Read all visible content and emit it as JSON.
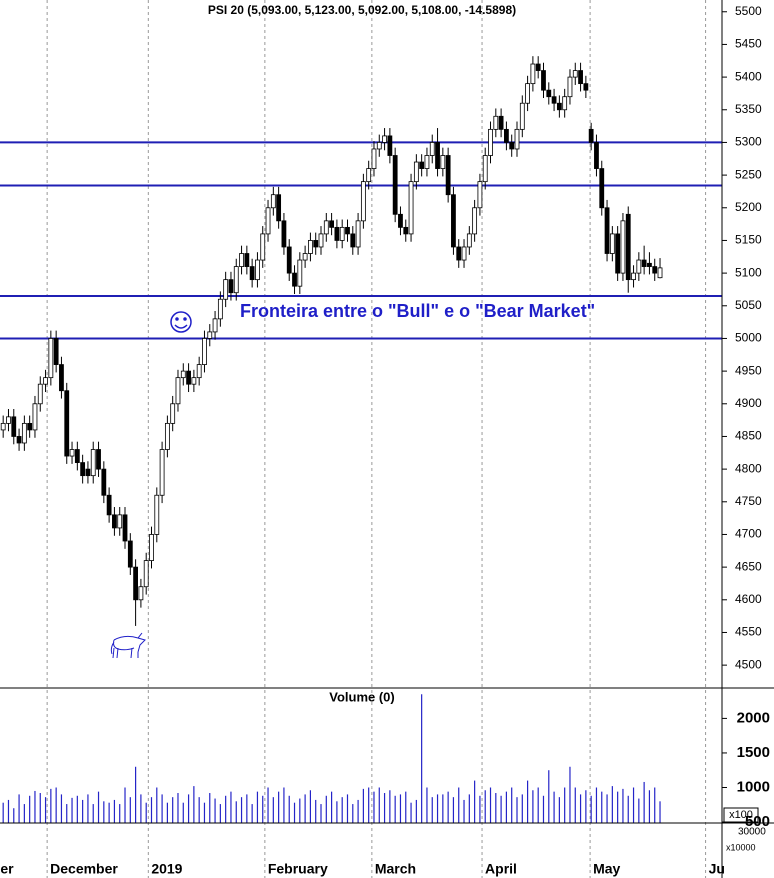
{
  "chart_data": {
    "type": "candlestick",
    "title": "PSI 20 (5,093.00, 5,123.00, 5,092.00, 5,108.00, -14.5898)",
    "annotation": "Fronteira entre o \"Bull\" e o \"Bear Market\"",
    "ylim": [
      4465,
      5518
    ],
    "yticks": [
      4500,
      4550,
      4600,
      4650,
      4700,
      4750,
      4800,
      4850,
      4900,
      4950,
      5000,
      5050,
      5100,
      5150,
      5200,
      5250,
      5300,
      5350,
      5400,
      5450,
      5500
    ],
    "hlines": [
      5300,
      5234,
      5065,
      5000
    ],
    "hline_color": "#1f1fb4",
    "xlim": [
      -0.6,
      135.7
    ],
    "xticks": [
      {
        "value": -1.1,
        "label": "er"
      },
      {
        "value": 8.3,
        "label": "December"
      },
      {
        "value": 27.4,
        "label": "2019"
      },
      {
        "value": 49.4,
        "label": "February"
      },
      {
        "value": 69.6,
        "label": "March"
      },
      {
        "value": 90.4,
        "label": "April"
      },
      {
        "value": 110.8,
        "label": "May"
      },
      {
        "value": 132.6,
        "label": "Ju"
      }
    ],
    "up_color": "#ffffff",
    "down_color": "#000000",
    "candles": [
      [
        4860,
        4882,
        4848,
        4870
      ],
      [
        4870,
        4892,
        4858,
        4880
      ],
      [
        4880,
        4892,
        4838,
        4850
      ],
      [
        4850,
        4862,
        4828,
        4840
      ],
      [
        4840,
        4882,
        4828,
        4870
      ],
      [
        4870,
        4882,
        4848,
        4860
      ],
      [
        4860,
        4912,
        4848,
        4900
      ],
      [
        4900,
        4942,
        4888,
        4930
      ],
      [
        4930,
        4952,
        4918,
        4940
      ],
      [
        4940,
        5012,
        4928,
        5000
      ],
      [
        5000,
        5012,
        4948,
        4960
      ],
      [
        4960,
        4972,
        4908,
        4920
      ],
      [
        4920,
        4932,
        4808,
        4820
      ],
      [
        4820,
        4842,
        4808,
        4830
      ],
      [
        4830,
        4842,
        4798,
        4810
      ],
      [
        4810,
        4822,
        4778,
        4790
      ],
      [
        4800,
        4812,
        4778,
        4790
      ],
      [
        4790,
        4842,
        4778,
        4830
      ],
      [
        4830,
        4842,
        4788,
        4800
      ],
      [
        4800,
        4812,
        4748,
        4760
      ],
      [
        4760,
        4772,
        4718,
        4730
      ],
      [
        4730,
        4742,
        4698,
        4710
      ],
      [
        4710,
        4742,
        4698,
        4730
      ],
      [
        4730,
        4742,
        4678,
        4690
      ],
      [
        4690,
        4702,
        4638,
        4650
      ],
      [
        4650,
        4662,
        4560,
        4600
      ],
      [
        4600,
        4632,
        4588,
        4620
      ],
      [
        4620,
        4672,
        4608,
        4660
      ],
      [
        4660,
        4712,
        4648,
        4700
      ],
      [
        4700,
        4772,
        4688,
        4760
      ],
      [
        4760,
        4842,
        4748,
        4830
      ],
      [
        4830,
        4882,
        4818,
        4870
      ],
      [
        4870,
        4912,
        4858,
        4900
      ],
      [
        4900,
        4952,
        4888,
        4940
      ],
      [
        4940,
        4962,
        4928,
        4950
      ],
      [
        4950,
        4962,
        4918,
        4930
      ],
      [
        4930,
        4952,
        4918,
        4940
      ],
      [
        4940,
        4972,
        4928,
        4960
      ],
      [
        4960,
        5012,
        4948,
        5000
      ],
      [
        5000,
        5022,
        4988,
        5010
      ],
      [
        5010,
        5042,
        4998,
        5030
      ],
      [
        5030,
        5072,
        5018,
        5060
      ],
      [
        5060,
        5102,
        5048,
        5090
      ],
      [
        5090,
        5102,
        5058,
        5070
      ],
      [
        5070,
        5122,
        5058,
        5110
      ],
      [
        5110,
        5142,
        5098,
        5130
      ],
      [
        5130,
        5142,
        5098,
        5110
      ],
      [
        5110,
        5122,
        5078,
        5090
      ],
      [
        5090,
        5132,
        5078,
        5120
      ],
      [
        5120,
        5172,
        5108,
        5160
      ],
      [
        5160,
        5212,
        5148,
        5200
      ],
      [
        5200,
        5232,
        5188,
        5220
      ],
      [
        5220,
        5232,
        5168,
        5180
      ],
      [
        5180,
        5192,
        5128,
        5140
      ],
      [
        5140,
        5152,
        5088,
        5100
      ],
      [
        5100,
        5112,
        5068,
        5080
      ],
      [
        5080,
        5132,
        5068,
        5120
      ],
      [
        5120,
        5142,
        5108,
        5130
      ],
      [
        5130,
        5162,
        5118,
        5150
      ],
      [
        5150,
        5162,
        5128,
        5140
      ],
      [
        5140,
        5172,
        5128,
        5160
      ],
      [
        5160,
        5192,
        5148,
        5180
      ],
      [
        5180,
        5192,
        5158,
        5170
      ],
      [
        5170,
        5182,
        5138,
        5150
      ],
      [
        5150,
        5182,
        5138,
        5170
      ],
      [
        5170,
        5182,
        5148,
        5160
      ],
      [
        5160,
        5172,
        5128,
        5140
      ],
      [
        5140,
        5192,
        5128,
        5180
      ],
      [
        5180,
        5252,
        5168,
        5240
      ],
      [
        5240,
        5272,
        5228,
        5260
      ],
      [
        5260,
        5302,
        5248,
        5290
      ],
      [
        5290,
        5312,
        5278,
        5300
      ],
      [
        5300,
        5322,
        5288,
        5310
      ],
      [
        5310,
        5322,
        5268,
        5280
      ],
      [
        5280,
        5292,
        5178,
        5190
      ],
      [
        5190,
        5202,
        5158,
        5170
      ],
      [
        5170,
        5182,
        5148,
        5160
      ],
      [
        5160,
        5252,
        5148,
        5240
      ],
      [
        5240,
        5282,
        5228,
        5270
      ],
      [
        5270,
        5282,
        5248,
        5260
      ],
      [
        5260,
        5292,
        5248,
        5280
      ],
      [
        5280,
        5312,
        5268,
        5300
      ],
      [
        5300,
        5322,
        5248,
        5260
      ],
      [
        5260,
        5292,
        5248,
        5280
      ],
      [
        5280,
        5292,
        5208,
        5220
      ],
      [
        5220,
        5232,
        5128,
        5140
      ],
      [
        5140,
        5152,
        5108,
        5120
      ],
      [
        5120,
        5152,
        5108,
        5140
      ],
      [
        5140,
        5172,
        5128,
        5160
      ],
      [
        5160,
        5212,
        5148,
        5200
      ],
      [
        5200,
        5252,
        5188,
        5240
      ],
      [
        5240,
        5292,
        5228,
        5280
      ],
      [
        5280,
        5332,
        5268,
        5320
      ],
      [
        5320,
        5352,
        5308,
        5340
      ],
      [
        5340,
        5352,
        5308,
        5320
      ],
      [
        5320,
        5332,
        5288,
        5300
      ],
      [
        5300,
        5312,
        5278,
        5290
      ],
      [
        5290,
        5332,
        5278,
        5320
      ],
      [
        5320,
        5372,
        5308,
        5360
      ],
      [
        5360,
        5402,
        5348,
        5390
      ],
      [
        5390,
        5432,
        5378,
        5420
      ],
      [
        5420,
        5432,
        5398,
        5410
      ],
      [
        5410,
        5422,
        5368,
        5380
      ],
      [
        5380,
        5392,
        5358,
        5370
      ],
      [
        5370,
        5382,
        5348,
        5360
      ],
      [
        5360,
        5372,
        5338,
        5350
      ],
      [
        5350,
        5382,
        5338,
        5370
      ],
      [
        5370,
        5412,
        5358,
        5400
      ],
      [
        5400,
        5422,
        5388,
        5410
      ],
      [
        5410,
        5422,
        5378,
        5390
      ],
      [
        5390,
        5402,
        5368,
        5380
      ],
      [
        5320,
        5330,
        5288,
        5300
      ],
      [
        5300,
        5312,
        5248,
        5260
      ],
      [
        5260,
        5272,
        5188,
        5200
      ],
      [
        5200,
        5212,
        5118,
        5130
      ],
      [
        5130,
        5172,
        5118,
        5160
      ],
      [
        5160,
        5172,
        5088,
        5100
      ],
      [
        5100,
        5192,
        5088,
        5180
      ],
      [
        5190,
        5202,
        5070,
        5090
      ],
      [
        5090,
        5112,
        5078,
        5100
      ],
      [
        5100,
        5132,
        5088,
        5120
      ],
      [
        5120,
        5142,
        5098,
        5110
      ],
      [
        5115,
        5132,
        5098,
        5110
      ],
      [
        5110,
        5122,
        5088,
        5100
      ],
      [
        5093,
        5123,
        5092,
        5108
      ]
    ],
    "volume": {
      "title": "Volume (0)",
      "color": "#2424c8",
      "ylim": [
        486,
        2440
      ],
      "yticks": [
        500,
        1000,
        1500,
        2000
      ],
      "unit_label": "x100",
      "extra_tick": "30000",
      "extra_unit": "x10000",
      "values": [
        780,
        820,
        700,
        900,
        760,
        880,
        950,
        920,
        860,
        980,
        1000,
        900,
        760,
        850,
        880,
        820,
        900,
        760,
        940,
        800,
        780,
        820,
        760,
        1000,
        860,
        1300,
        900,
        780,
        860,
        1000,
        900,
        780,
        860,
        920,
        780,
        900,
        1020,
        860,
        780,
        920,
        840,
        760,
        880,
        940,
        800,
        860,
        900,
        760,
        940,
        880,
        1000,
        860,
        940,
        1000,
        880,
        780,
        840,
        900,
        960,
        820,
        760,
        880,
        940,
        800,
        860,
        900,
        760,
        820,
        980,
        1000,
        940,
        1000,
        920,
        960,
        880,
        900,
        940,
        780,
        820,
        2350,
        1000,
        860,
        900,
        900,
        940,
        860,
        1000,
        820,
        900,
        1100,
        880,
        960,
        1000,
        920,
        880,
        940,
        1000,
        860,
        900,
        1100,
        960,
        1000,
        880,
        1250,
        940,
        860,
        1000,
        1300,
        1000,
        900,
        960,
        880,
        1000,
        940,
        900,
        1020,
        940,
        980,
        880,
        1000,
        840,
        1080,
        960,
        1000,
        800
      ]
    }
  }
}
